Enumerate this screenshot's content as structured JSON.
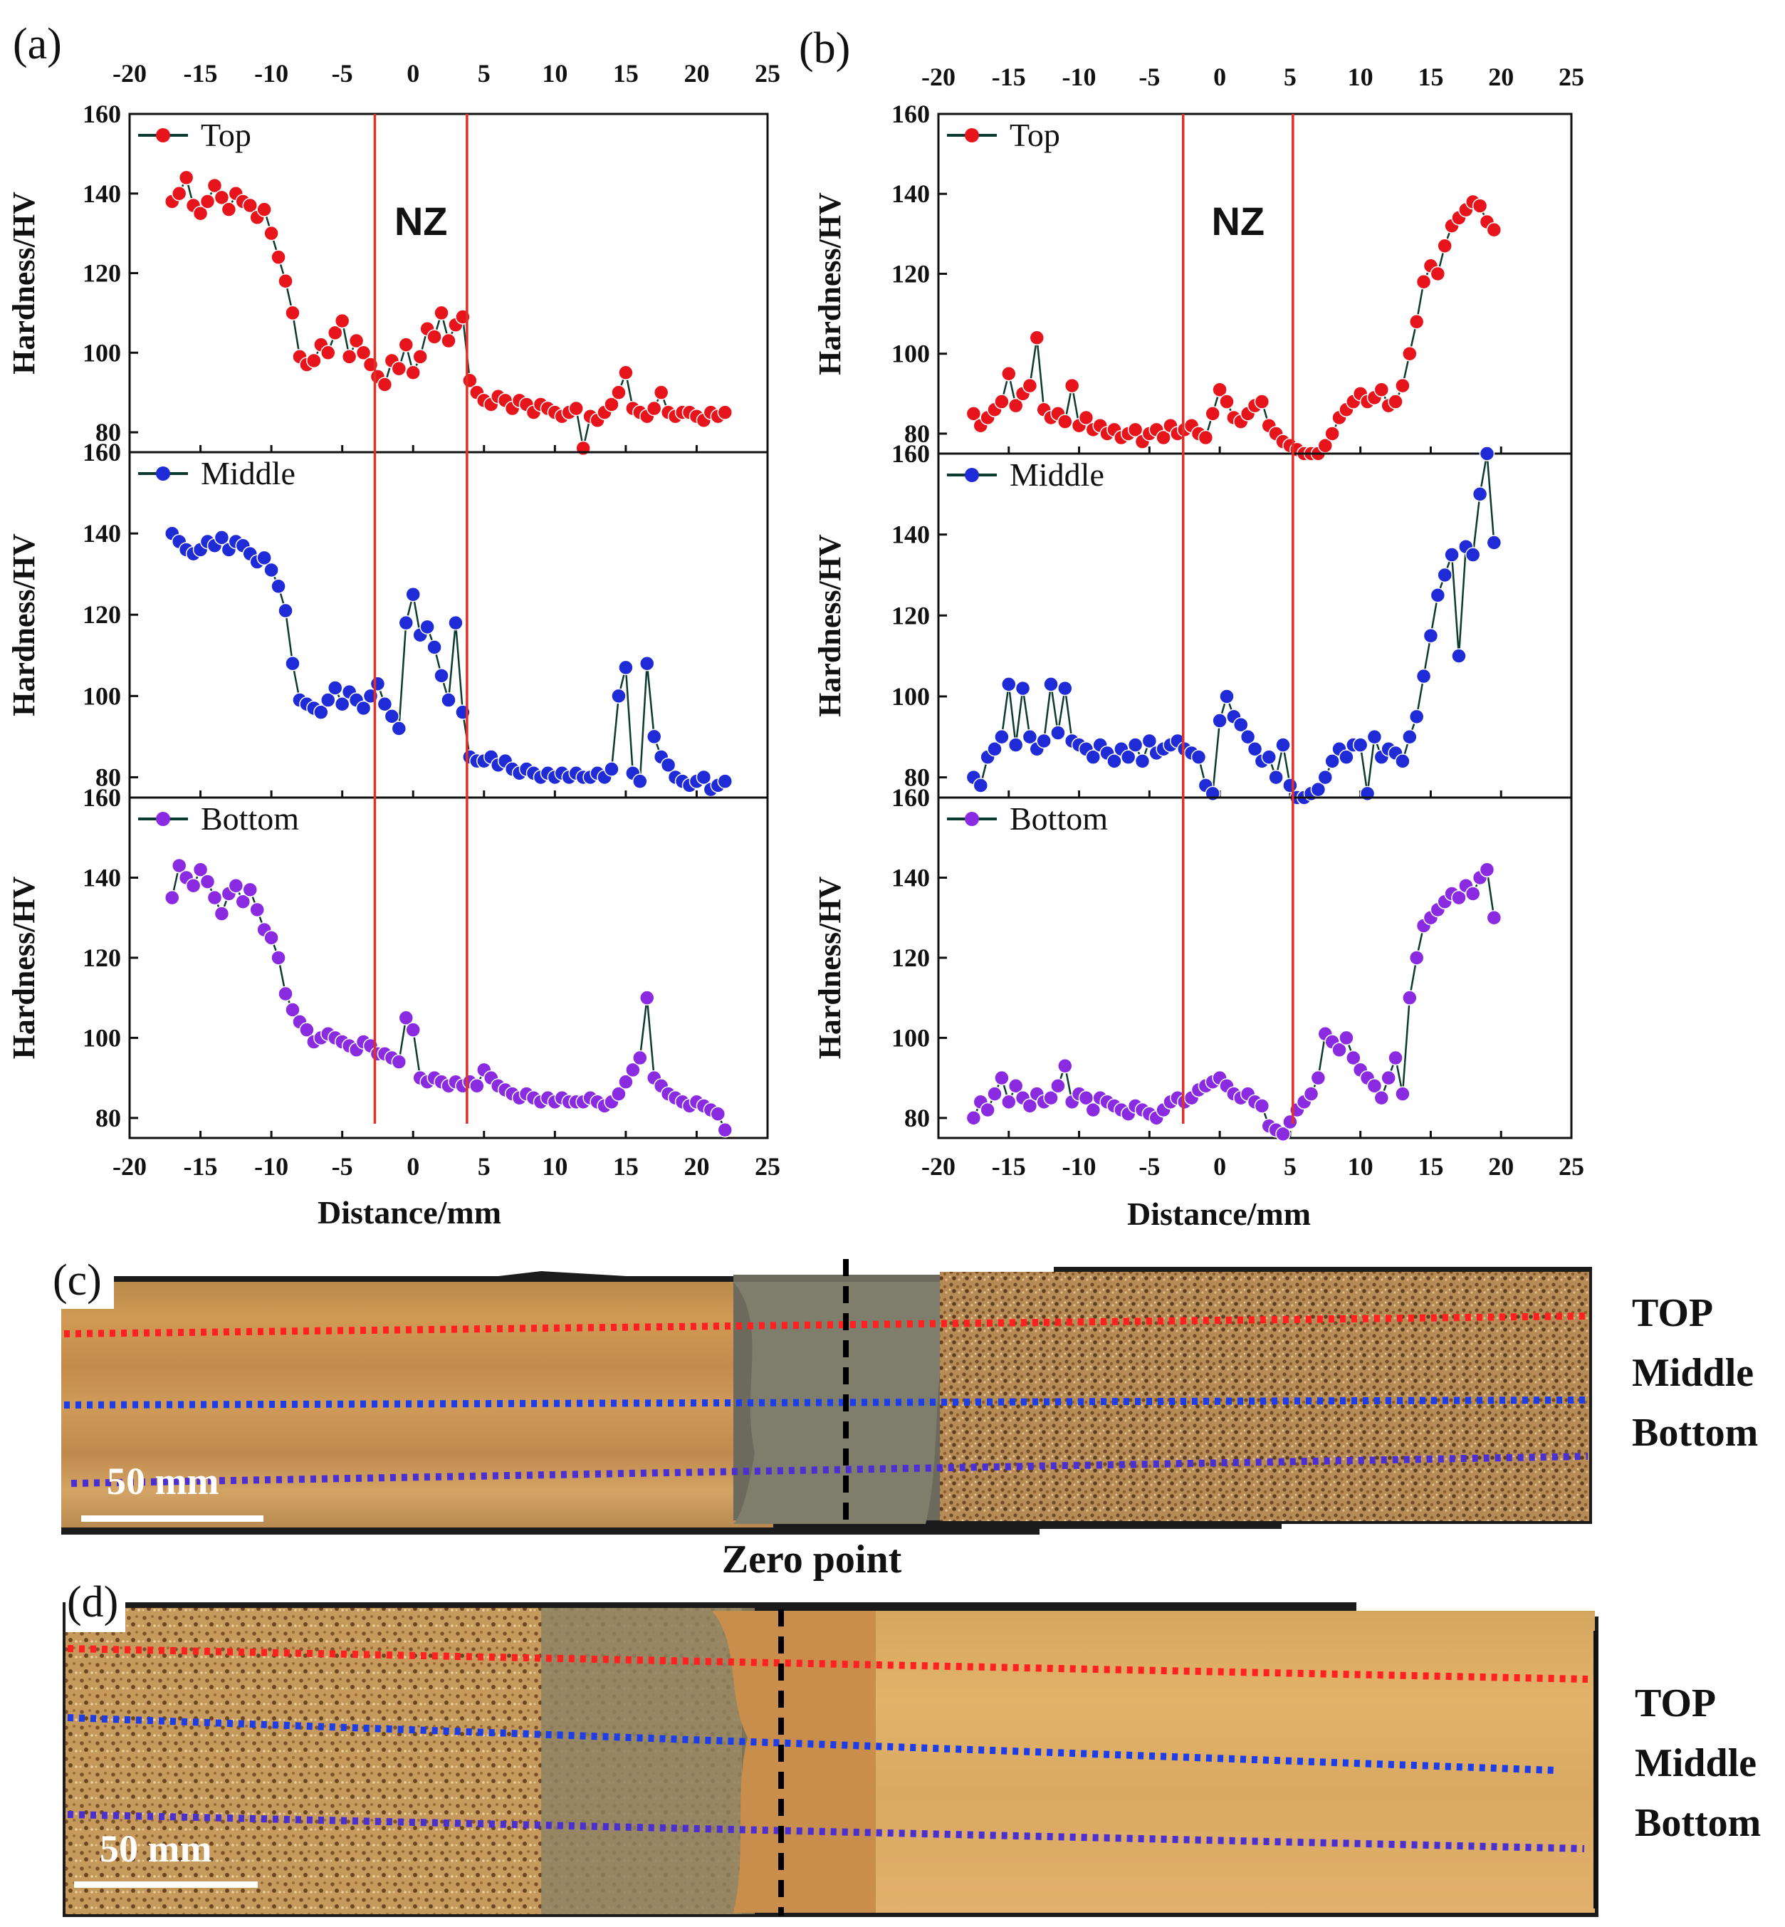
{
  "panel_labels": {
    "a": "(a)",
    "b": "(b)",
    "c": "(c)",
    "d": "(d)"
  },
  "colors": {
    "top": "#e8141b",
    "middle": "#1f2bd6",
    "bottom": "#8a2be2",
    "boundary": "#e0302a",
    "axis": "#111111",
    "line": "#0b3b2e"
  },
  "nz_label": "NZ",
  "metallography": {
    "scale_bar_label": "50 mm",
    "zero_point_label": "Zero point",
    "line_labels": [
      "TOP",
      "Middle",
      "Bottom"
    ]
  },
  "chart_data": [
    {
      "id": "a",
      "type": "line",
      "xlabel": "Distance/mm",
      "ylabel": "Hardness/HV",
      "xlim": [
        -20,
        25
      ],
      "xticks": [
        -20,
        -15,
        -10,
        -5,
        0,
        5,
        10,
        15,
        20,
        25
      ],
      "ylim": [
        75,
        160
      ],
      "yticks": [
        80,
        100,
        120,
        140,
        160
      ],
      "nz_boundaries": [
        -2.7,
        3.8
      ],
      "series": [
        {
          "name": "Top",
          "x": [
            -17,
            -16.5,
            -16,
            -15.5,
            -15,
            -14.5,
            -14,
            -13.5,
            -13,
            -12.5,
            -12,
            -11.5,
            -11,
            -10.5,
            -10,
            -9.5,
            -9,
            -8.5,
            -8,
            -7.5,
            -7,
            -6.5,
            -6,
            -5.5,
            -5,
            -4.5,
            -4,
            -3.5,
            -3,
            -2.5,
            -2,
            -1.5,
            -1,
            -0.5,
            0,
            0.5,
            1,
            1.5,
            2,
            2.5,
            3,
            3.5,
            4,
            4.5,
            5,
            5.5,
            6,
            6.5,
            7,
            7.5,
            8,
            8.5,
            9,
            9.5,
            10,
            10.5,
            11,
            11.5,
            12,
            12.5,
            13,
            13.5,
            14,
            14.5,
            15,
            15.5,
            16,
            16.5,
            17,
            17.5,
            18,
            18.5,
            19,
            19.5,
            20,
            20.5,
            21,
            21.5,
            22
          ],
          "y": [
            138,
            140,
            144,
            137,
            135,
            138,
            142,
            139,
            136,
            140,
            138,
            137,
            134,
            136,
            130,
            124,
            118,
            110,
            99,
            97,
            98,
            102,
            100,
            105,
            108,
            99,
            103,
            100,
            97,
            94,
            92,
            98,
            96,
            102,
            95,
            99,
            106,
            104,
            110,
            103,
            107,
            109,
            93,
            90,
            88,
            87,
            89,
            88,
            86,
            88,
            87,
            85,
            87,
            86,
            85,
            84,
            85,
            86,
            76,
            84,
            83,
            85,
            87,
            90,
            95,
            86,
            85,
            84,
            86,
            90,
            85,
            84,
            85,
            85,
            84,
            83,
            85,
            84,
            85
          ]
        },
        {
          "name": "Middle",
          "x": [
            -17,
            -16.5,
            -16,
            -15.5,
            -15,
            -14.5,
            -14,
            -13.5,
            -13,
            -12.5,
            -12,
            -11.5,
            -11,
            -10.5,
            -10,
            -9.5,
            -9,
            -8.5,
            -8,
            -7.5,
            -7,
            -6.5,
            -6,
            -5.5,
            -5,
            -4.5,
            -4,
            -3.5,
            -3,
            -2.5,
            -2,
            -1.5,
            -1,
            -0.5,
            0,
            0.5,
            1,
            1.5,
            2,
            2.5,
            3,
            3.5,
            4,
            4.5,
            5,
            5.5,
            6,
            6.5,
            7,
            7.5,
            8,
            8.5,
            9,
            9.5,
            10,
            10.5,
            11,
            11.5,
            12,
            12.5,
            13,
            13.5,
            14,
            14.5,
            15,
            15.5,
            16,
            16.5,
            17,
            17.5,
            18,
            18.5,
            19,
            19.5,
            20,
            20.5,
            21,
            21.5,
            22
          ],
          "y": [
            140,
            138,
            136,
            135,
            136,
            138,
            137,
            139,
            136,
            138,
            137,
            135,
            133,
            134,
            131,
            127,
            121,
            108,
            99,
            98,
            97,
            96,
            99,
            102,
            98,
            101,
            99,
            97,
            100,
            103,
            98,
            95,
            92,
            118,
            125,
            115,
            117,
            112,
            105,
            99,
            118,
            96,
            85,
            84,
            84,
            85,
            83,
            84,
            82,
            81,
            82,
            81,
            80,
            81,
            80,
            81,
            80,
            81,
            80,
            80,
            81,
            80,
            82,
            100,
            107,
            81,
            79,
            108,
            90,
            85,
            83,
            80,
            79,
            78,
            79,
            80,
            77,
            78,
            79
          ]
        },
        {
          "name": "Bottom",
          "x": [
            -17,
            -16.5,
            -16,
            -15.5,
            -15,
            -14.5,
            -14,
            -13.5,
            -13,
            -12.5,
            -12,
            -11.5,
            -11,
            -10.5,
            -10,
            -9.5,
            -9,
            -8.5,
            -8,
            -7.5,
            -7,
            -6.5,
            -6,
            -5.5,
            -5,
            -4.5,
            -4,
            -3.5,
            -3,
            -2.5,
            -2,
            -1.5,
            -1,
            -0.5,
            0,
            0.5,
            1,
            1.5,
            2,
            2.5,
            3,
            3.5,
            4,
            4.5,
            5,
            5.5,
            6,
            6.5,
            7,
            7.5,
            8,
            8.5,
            9,
            9.5,
            10,
            10.5,
            11,
            11.5,
            12,
            12.5,
            13,
            13.5,
            14,
            14.5,
            15,
            15.5,
            16,
            16.5,
            17,
            17.5,
            18,
            18.5,
            19,
            19.5,
            20,
            20.5,
            21,
            21.5,
            22
          ],
          "y": [
            135,
            143,
            140,
            138,
            142,
            139,
            135,
            131,
            136,
            138,
            134,
            137,
            132,
            127,
            125,
            120,
            111,
            107,
            104,
            102,
            99,
            100,
            101,
            100,
            99,
            98,
            97,
            99,
            98,
            96,
            96,
            95,
            94,
            105,
            102,
            90,
            89,
            90,
            89,
            88,
            89,
            88,
            89,
            88,
            92,
            90,
            88,
            87,
            86,
            85,
            86,
            85,
            84,
            85,
            84,
            85,
            84,
            84,
            84,
            85,
            84,
            83,
            84,
            86,
            89,
            92,
            95,
            110,
            90,
            88,
            86,
            85,
            84,
            83,
            84,
            83,
            82,
            81,
            77
          ]
        }
      ]
    },
    {
      "id": "b",
      "type": "line",
      "xlabel": "Distance/mm",
      "ylabel": "Hardness/HV",
      "xlim": [
        -20,
        25
      ],
      "xticks": [
        -20,
        -15,
        -10,
        -5,
        0,
        5,
        10,
        15,
        20,
        25
      ],
      "ylim": [
        75,
        160
      ],
      "yticks": [
        80,
        100,
        120,
        140,
        160
      ],
      "nz_boundaries": [
        -2.6,
        5.2
      ],
      "series": [
        {
          "name": "Top",
          "x": [
            -17.5,
            -17,
            -16.5,
            -16,
            -15.5,
            -15,
            -14.5,
            -14,
            -13.5,
            -13,
            -12.5,
            -12,
            -11.5,
            -11,
            -10.5,
            -10,
            -9.5,
            -9,
            -8.5,
            -8,
            -7.5,
            -7,
            -6.5,
            -6,
            -5.5,
            -5,
            -4.5,
            -4,
            -3.5,
            -3,
            -2.5,
            -2,
            -1.5,
            -1,
            -0.5,
            0,
            0.5,
            1,
            1.5,
            2,
            2.5,
            3,
            3.5,
            4,
            4.5,
            5,
            5.5,
            6,
            6.5,
            7,
            7.5,
            8,
            8.5,
            9,
            9.5,
            10,
            10.5,
            11,
            11.5,
            12,
            12.5,
            13,
            13.5,
            14,
            14.5,
            15,
            15.5,
            16,
            16.5,
            17,
            17.5,
            18,
            18.5,
            19,
            19.5
          ],
          "y": [
            85,
            82,
            84,
            86,
            88,
            95,
            87,
            90,
            92,
            104,
            86,
            84,
            85,
            83,
            92,
            82,
            84,
            81,
            82,
            80,
            81,
            79,
            80,
            81,
            78,
            80,
            81,
            79,
            82,
            80,
            81,
            82,
            80,
            79,
            85,
            91,
            88,
            84,
            83,
            85,
            87,
            88,
            82,
            80,
            78,
            77,
            76,
            75,
            74,
            75,
            77,
            80,
            84,
            86,
            88,
            90,
            88,
            89,
            91,
            87,
            88,
            92,
            100,
            108,
            118,
            122,
            120,
            127,
            132,
            134,
            136,
            138,
            137,
            133,
            131
          ]
        },
        {
          "name": "Middle",
          "x": [
            -17.5,
            -17,
            -16.5,
            -16,
            -15.5,
            -15,
            -14.5,
            -14,
            -13.5,
            -13,
            -12.5,
            -12,
            -11.5,
            -11,
            -10.5,
            -10,
            -9.5,
            -9,
            -8.5,
            -8,
            -7.5,
            -7,
            -6.5,
            -6,
            -5.5,
            -5,
            -4.5,
            -4,
            -3.5,
            -3,
            -2.5,
            -2,
            -1.5,
            -1,
            -0.5,
            0,
            0.5,
            1,
            1.5,
            2,
            2.5,
            3,
            3.5,
            4,
            4.5,
            5,
            5.5,
            6,
            6.5,
            7,
            7.5,
            8,
            8.5,
            9,
            9.5,
            10,
            10.5,
            11,
            11.5,
            12,
            12.5,
            13,
            13.5,
            14,
            14.5,
            15,
            15.5,
            16,
            16.5,
            17,
            17.5,
            18,
            18.5,
            19,
            19.5
          ],
          "y": [
            80,
            78,
            85,
            87,
            90,
            103,
            88,
            102,
            90,
            87,
            89,
            103,
            91,
            102,
            89,
            88,
            87,
            85,
            88,
            86,
            84,
            87,
            85,
            88,
            84,
            89,
            86,
            87,
            88,
            89,
            87,
            86,
            85,
            78,
            76,
            94,
            100,
            95,
            93,
            90,
            87,
            84,
            85,
            80,
            88,
            78,
            75,
            75,
            76,
            77,
            80,
            84,
            87,
            85,
            88,
            88,
            76,
            90,
            85,
            87,
            86,
            84,
            90,
            95,
            105,
            115,
            125,
            130,
            135,
            110,
            137,
            135,
            150,
            160,
            138
          ]
        },
        {
          "name": "Bottom",
          "x": [
            -17.5,
            -17,
            -16.5,
            -16,
            -15.5,
            -15,
            -14.5,
            -14,
            -13.5,
            -13,
            -12.5,
            -12,
            -11.5,
            -11,
            -10.5,
            -10,
            -9.5,
            -9,
            -8.5,
            -8,
            -7.5,
            -7,
            -6.5,
            -6,
            -5.5,
            -5,
            -4.5,
            -4,
            -3.5,
            -3,
            -2.5,
            -2,
            -1.5,
            -1,
            -0.5,
            0,
            0.5,
            1,
            1.5,
            2,
            2.5,
            3,
            3.5,
            4,
            4.5,
            5,
            5.5,
            6,
            6.5,
            7,
            7.5,
            8,
            8.5,
            9,
            9.5,
            10,
            10.5,
            11,
            11.5,
            12,
            12.5,
            13,
            13.5,
            14,
            14.5,
            15,
            15.5,
            16,
            16.5,
            17,
            17.5,
            18,
            18.5,
            19,
            19.5
          ],
          "y": [
            80,
            84,
            82,
            86,
            90,
            84,
            88,
            85,
            83,
            86,
            84,
            85,
            88,
            93,
            84,
            86,
            85,
            82,
            85,
            84,
            83,
            82,
            81,
            83,
            82,
            81,
            80,
            82,
            84,
            85,
            84,
            85,
            87,
            88,
            89,
            90,
            88,
            86,
            85,
            86,
            84,
            83,
            78,
            77,
            76,
            79,
            82,
            84,
            86,
            90,
            101,
            99,
            97,
            100,
            95,
            92,
            90,
            88,
            85,
            90,
            95,
            86,
            110,
            120,
            128,
            130,
            132,
            134,
            136,
            135,
            138,
            136,
            140,
            142,
            130
          ]
        }
      ]
    }
  ]
}
